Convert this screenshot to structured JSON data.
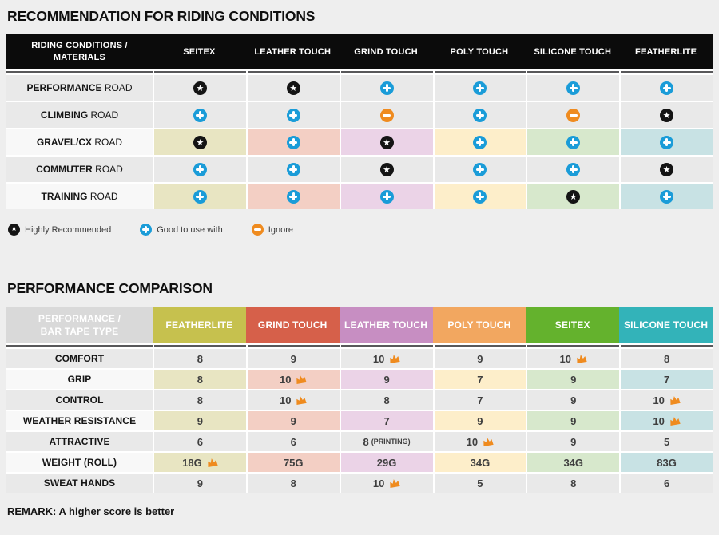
{
  "recommendation": {
    "title": "RECOMMENDATION FOR RIDING CONDITIONS",
    "header": {
      "label_lines": [
        "RIDING CONDITIONS /",
        "MATERIALS"
      ],
      "columns": [
        "SEITEX",
        "LEATHER TOUCH",
        "GRIND TOUCH",
        "POLY TOUCH",
        "SILICONE TOUCH",
        "FEATHERLITE"
      ]
    },
    "rows": [
      {
        "label_bold": "PERFORMANCE",
        "label_rest": "ROAD",
        "colored": false,
        "cells": [
          "star",
          "star",
          "plus",
          "plus",
          "plus",
          "plus"
        ]
      },
      {
        "label_bold": "CLIMBING",
        "label_rest": "ROAD",
        "colored": false,
        "cells": [
          "plus",
          "plus",
          "minus",
          "plus",
          "minus",
          "star"
        ]
      },
      {
        "label_bold": "GRAVEL/CX",
        "label_rest": "ROAD",
        "colored": true,
        "cells": [
          "star",
          "plus",
          "star",
          "plus",
          "plus",
          "plus"
        ]
      },
      {
        "label_bold": "COMMUTER",
        "label_rest": "ROAD",
        "colored": false,
        "cells": [
          "plus",
          "plus",
          "star",
          "plus",
          "plus",
          "star"
        ]
      },
      {
        "label_bold": "TRAINING",
        "label_rest": "ROAD",
        "colored": true,
        "cells": [
          "plus",
          "plus",
          "plus",
          "plus",
          "star",
          "plus"
        ]
      }
    ],
    "legend": [
      {
        "icon": "star",
        "label": "Highly Recommended"
      },
      {
        "icon": "plus",
        "label": "Good to use with"
      },
      {
        "icon": "minus",
        "label": "Ignore"
      }
    ]
  },
  "performance": {
    "title": "PERFORMANCE COMPARISON",
    "header": {
      "label_lines": [
        "PERFORMANCE /",
        "BAR TAPE TYPE"
      ],
      "columns": [
        {
          "label": "FEATHERLITE",
          "color": "#c6c14e"
        },
        {
          "label": "GRIND TOUCH",
          "color": "#d6604a"
        },
        {
          "label": "LEATHER TOUCH",
          "color": "#c78ec2"
        },
        {
          "label": "POLY TOUCH",
          "color": "#f2a760"
        },
        {
          "label": "SEITEX",
          "color": "#64b22d"
        },
        {
          "label": "SILICONE TOUCH",
          "color": "#33b3b9"
        }
      ]
    },
    "rows": [
      {
        "label": "COMFORT",
        "colored": false,
        "cells": [
          {
            "v": "8"
          },
          {
            "v": "9"
          },
          {
            "v": "10",
            "crown": true
          },
          {
            "v": "9"
          },
          {
            "v": "10",
            "crown": true
          },
          {
            "v": "8"
          }
        ]
      },
      {
        "label": "GRIP",
        "colored": true,
        "cells": [
          {
            "v": "8"
          },
          {
            "v": "10",
            "crown": true
          },
          {
            "v": "9"
          },
          {
            "v": "7"
          },
          {
            "v": "9"
          },
          {
            "v": "7"
          }
        ]
      },
      {
        "label": "CONTROL",
        "colored": false,
        "cells": [
          {
            "v": "8"
          },
          {
            "v": "10",
            "crown": true
          },
          {
            "v": "8"
          },
          {
            "v": "7"
          },
          {
            "v": "9"
          },
          {
            "v": "10",
            "crown": true
          }
        ]
      },
      {
        "label": "WEATHER RESISTANCE",
        "colored": true,
        "cells": [
          {
            "v": "9"
          },
          {
            "v": "9"
          },
          {
            "v": "7"
          },
          {
            "v": "9"
          },
          {
            "v": "9"
          },
          {
            "v": "10",
            "crown": true
          }
        ]
      },
      {
        "label": "ATTRACTIVE",
        "colored": false,
        "cells": [
          {
            "v": "6"
          },
          {
            "v": "6"
          },
          {
            "v": "8",
            "suffix": "(PRINTING)"
          },
          {
            "v": "10",
            "crown": true
          },
          {
            "v": "9"
          },
          {
            "v": "5"
          }
        ]
      },
      {
        "label": "WEIGHT (ROLL)",
        "colored": true,
        "cells": [
          {
            "v": "18G",
            "crown": true
          },
          {
            "v": "75G"
          },
          {
            "v": "29G"
          },
          {
            "v": "34G"
          },
          {
            "v": "34G"
          },
          {
            "v": "83G"
          }
        ]
      },
      {
        "label": "SWEAT HANDS",
        "colored": false,
        "cells": [
          {
            "v": "9"
          },
          {
            "v": "8"
          },
          {
            "v": "10",
            "crown": true
          },
          {
            "v": "5"
          },
          {
            "v": "8"
          },
          {
            "v": "6"
          }
        ]
      }
    ],
    "remark": "REMARK: A higher score is better"
  },
  "colors": {
    "page_bg": "#eeeeee",
    "table1_header_bg": "#0b0b0b",
    "row_gray": "#e9e9e9",
    "row_label_light": "#f8f8f8",
    "rule": "#58585a",
    "perf_label_header_bg": "#d9d9d9",
    "column_light": [
      "#e8e5c2",
      "#f3cfc4",
      "#ebd3e7",
      "#fdeeca",
      "#d7e8cc",
      "#c8e2e4"
    ],
    "icon_star": "#141414",
    "icon_plus": "#1a9cd8",
    "icon_minus": "#ef8b1f",
    "crown": "#ef8b1f"
  }
}
